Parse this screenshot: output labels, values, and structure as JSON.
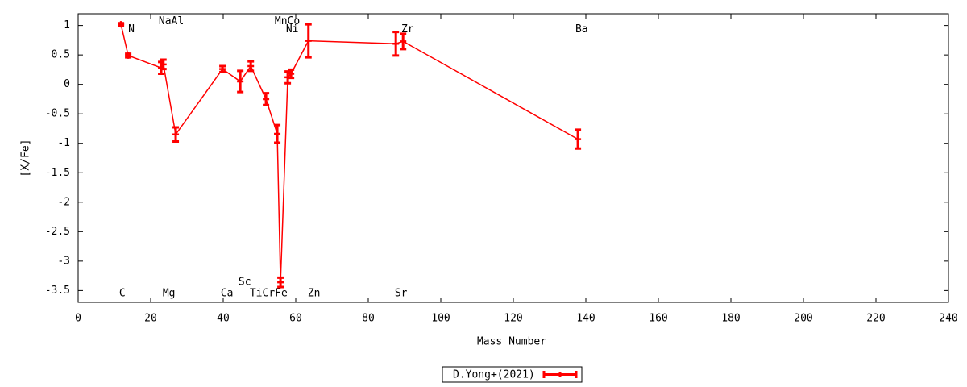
{
  "chart_data": {
    "type": "errorbar-line",
    "x_label": "Mass Number",
    "y_label": "[X/Fe]",
    "xlim": [
      0,
      240
    ],
    "xticks": [
      0,
      20,
      40,
      60,
      80,
      100,
      120,
      140,
      160,
      180,
      200,
      220,
      240
    ],
    "ylim": [
      -3.7,
      1.2
    ],
    "yticks": [
      1,
      0.5,
      0,
      -0.5,
      -1,
      -1.5,
      -2,
      -2.5,
      -3,
      -3.5
    ],
    "grid": false,
    "legend": "bottom",
    "series": [
      {
        "name": "D.Yong+(2021)",
        "color": "#ff0000",
        "x": [
          11.8,
          13.8,
          22.9,
          23.5,
          26.9,
          39.8,
          44.7,
          47.6,
          51.8,
          54.9,
          55.8,
          57.8,
          58.7,
          63.5,
          87.6,
          89.6,
          137.8
        ],
        "values": [
          1.02,
          0.49,
          0.28,
          0.34,
          -0.85,
          0.26,
          0.05,
          0.31,
          -0.25,
          -0.84,
          -3.36,
          0.12,
          0.18,
          0.74,
          0.69,
          0.73,
          -0.93
        ],
        "errors": [
          0.02,
          0.03,
          0.1,
          0.08,
          0.12,
          0.05,
          0.18,
          0.08,
          0.1,
          0.15,
          0.08,
          0.1,
          0.07,
          0.28,
          0.2,
          0.13,
          0.16
        ]
      }
    ],
    "annotations": [
      {
        "text": "N",
        "x": 13.8,
        "y": 0.93
      },
      {
        "text": "NaAl",
        "x": 22.2,
        "y": 1.07
      },
      {
        "text": "MnCo",
        "x": 54.2,
        "y": 1.07
      },
      {
        "text": "Ni",
        "x": 57.3,
        "y": 0.93
      },
      {
        "text": "Zr",
        "x": 89.1,
        "y": 0.93
      },
      {
        "text": "Ba",
        "x": 137.1,
        "y": 0.93
      },
      {
        "text": "C",
        "x": 11.3,
        "y": -3.55
      },
      {
        "text": "Mg",
        "x": 23.3,
        "y": -3.55
      },
      {
        "text": "Ca",
        "x": 39.3,
        "y": -3.55
      },
      {
        "text": "Sc",
        "x": 44.2,
        "y": -3.36
      },
      {
        "text": "TiCrFe",
        "x": 47.3,
        "y": -3.55
      },
      {
        "text": "Zn",
        "x": 63.3,
        "y": -3.55
      },
      {
        "text": "Sr",
        "x": 87.3,
        "y": -3.55
      }
    ]
  }
}
